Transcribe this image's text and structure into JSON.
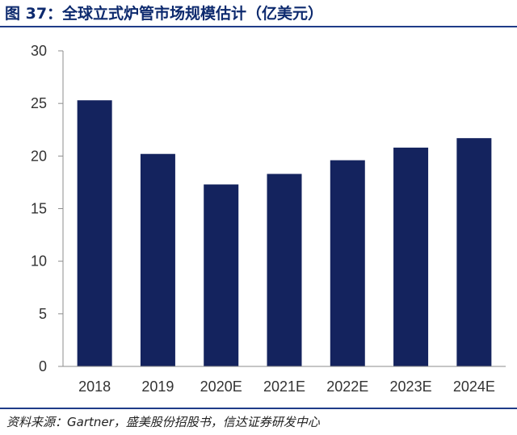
{
  "figure": {
    "title": "图 37：全球立式炉管市场规模估计（亿美元）",
    "source": "资料来源：Gartner，盛美股份招股书，信达证券研发中心"
  },
  "colors": {
    "bar": "#14235e",
    "axis": "#8c8c8c",
    "tick_text": "#333333",
    "title": "#0d2a6e",
    "rule": "#1f3c88"
  },
  "chart_data": {
    "type": "bar",
    "title": "全球立式炉管市场规模估计（亿美元）",
    "xlabel": "",
    "ylabel": "",
    "categories": [
      "2018",
      "2019",
      "2020E",
      "2021E",
      "2022E",
      "2023E",
      "2024E"
    ],
    "series": [
      {
        "values": [
          25.3,
          20.2,
          17.3,
          18.3,
          19.6,
          20.8,
          21.7
        ]
      }
    ],
    "ylim": [
      0,
      30
    ],
    "yticks": [
      "0",
      "5",
      "10",
      "15",
      "20",
      "25",
      "30"
    ],
    "grid": false,
    "legend": "none"
  }
}
